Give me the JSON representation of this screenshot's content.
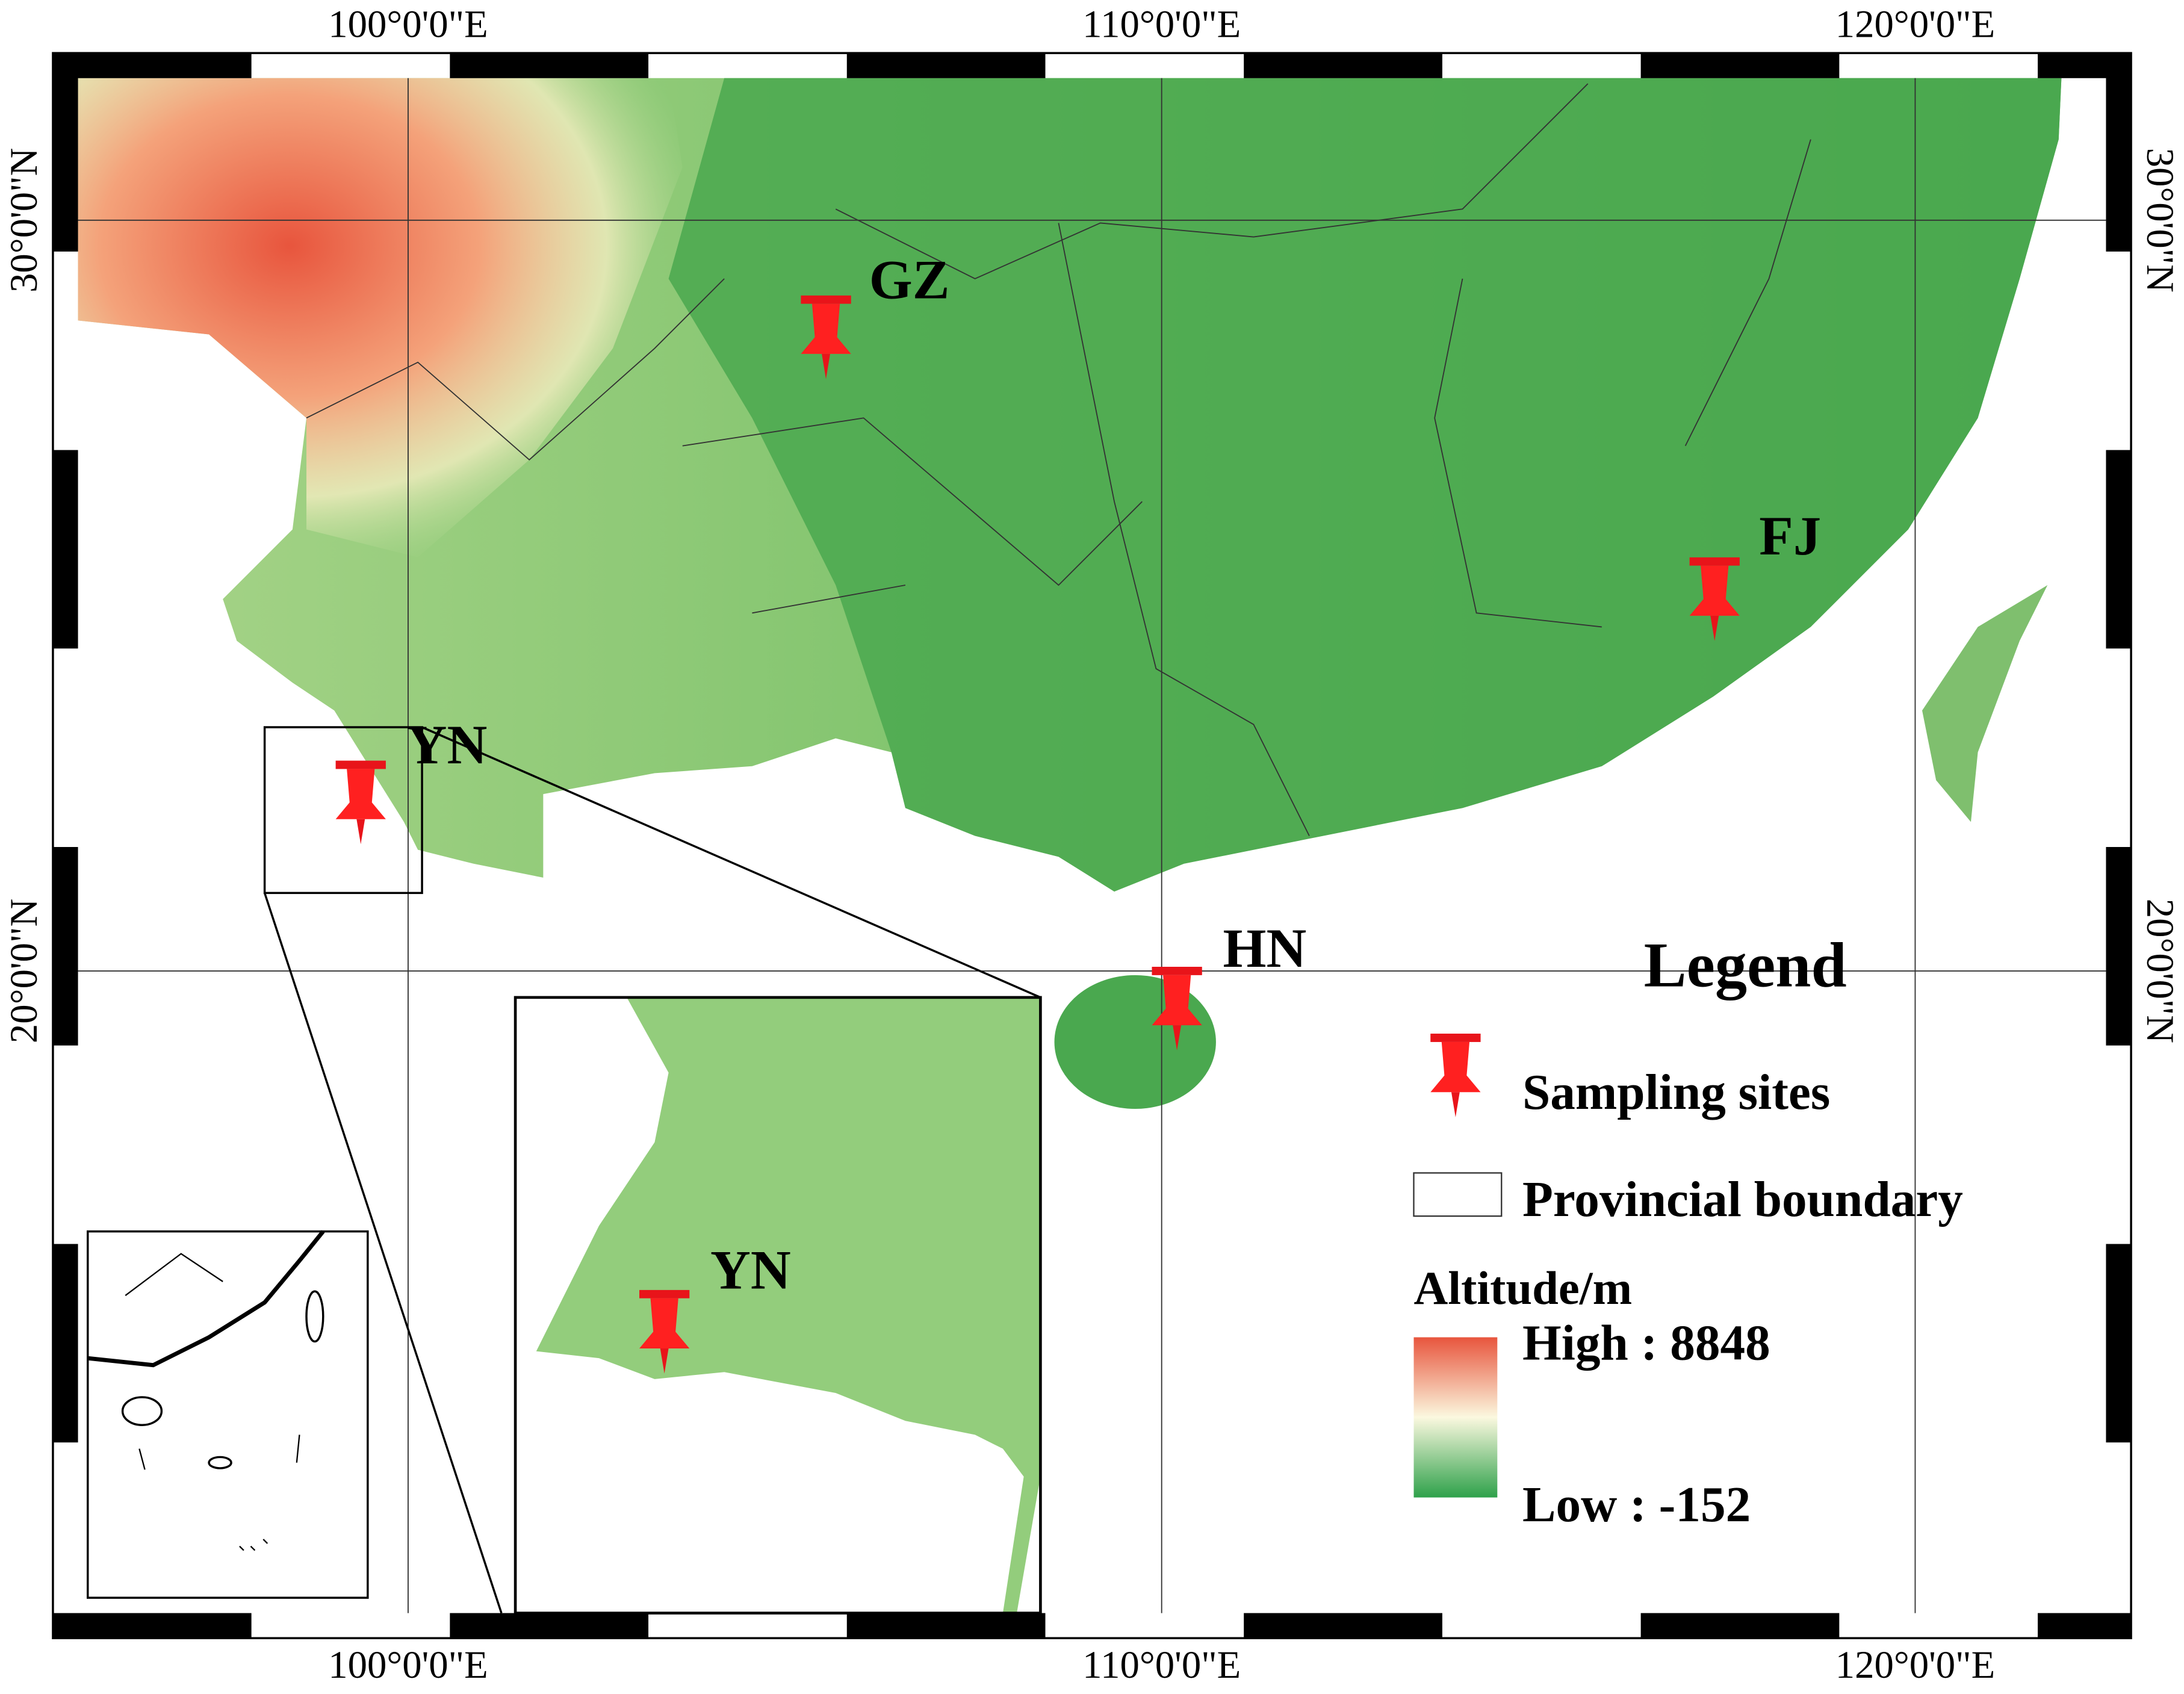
{
  "map": {
    "graticule": {
      "longitudes": [
        "100°0'0\"E",
        "110°0'0\"E",
        "120°0'0\"E"
      ],
      "latitudes": [
        "30°0'0\"N",
        "20°0'0\"N"
      ]
    },
    "sites": [
      {
        "label": "GZ"
      },
      {
        "label": "FJ"
      },
      {
        "label": "YN"
      },
      {
        "label": "HN"
      }
    ],
    "inset_label": "YN",
    "legend": {
      "title": "Legend",
      "items": [
        "Sampling sites",
        "Provincial boundary"
      ],
      "altitude": {
        "title": "Altitude/m",
        "high": "High : 8848",
        "low": "Low : -152"
      }
    }
  }
}
